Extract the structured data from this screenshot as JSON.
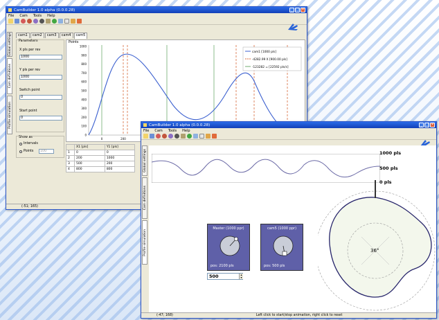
{
  "back_window": {
    "title": "CamBuilder 1.0 alpha (0.0.0.28)",
    "menu": [
      "File",
      "Cam",
      "Tools",
      "Help"
    ],
    "side_tabs": [
      "Global settings",
      "Cam definitions",
      "Profile simulation"
    ],
    "tabs": [
      "cam1",
      "cam2",
      "cam3",
      "cam4",
      "cam5"
    ],
    "active_tab": "cam5",
    "params": {
      "group": "Parameters",
      "x_label": "X pls per rev",
      "x_value": "1000",
      "y_label": "Y pls per rev",
      "y_value": "1000",
      "switch_label": "Switch point",
      "switch_value": "0",
      "start_label": "Start point",
      "start_value": "0"
    },
    "show_as": {
      "group": "Show as",
      "option1": "Intervals",
      "option2": "Points",
      "points_value": "100"
    },
    "plot_group": "Points",
    "legend": [
      "cam1 [1000 pls]",
      "-4282.99 X [900.00 pls]",
      "-123282 = [22592 pls/s]"
    ],
    "y_ticks": [
      "1000",
      "900",
      "800",
      "700",
      "600",
      "500",
      "400",
      "300",
      "200",
      "100",
      "0"
    ],
    "x_ticks": [
      "0",
      "200",
      "400"
    ],
    "table": {
      "headers": [
        "",
        "X1 [pls]",
        "Y1 [pls]"
      ],
      "rows": [
        [
          "1",
          "0",
          "0"
        ],
        [
          "2",
          "200",
          "1000"
        ],
        [
          "3",
          "500",
          "200"
        ],
        [
          "4",
          "800",
          "800"
        ]
      ]
    },
    "status": "(-51; 165)"
  },
  "front_window": {
    "title": "CamBuilder 1.0 alpha (0.0.0.28)",
    "menu": [
      "File",
      "Cam",
      "Tools",
      "Help"
    ],
    "side_tabs": [
      "Global settings",
      "Cam definitions",
      "Profile simulation"
    ],
    "scale_labels": [
      "1000 pls",
      "500 pls",
      "0 pls"
    ],
    "master": {
      "title": "Master (1000 ppr)",
      "pos": "pos: 2100 pls"
    },
    "cam": {
      "title": "cam5 (1000 ppr)",
      "pos": "pos: 500 pls"
    },
    "speed_value": "500",
    "angle_label": "36°",
    "status_left": "(-47; 168)",
    "status_hint": "Left click to start/stop animation, right click to reset"
  },
  "colors": {
    "title_blue": "#1f55d6",
    "curve_blue": "#3a5fcf",
    "mini_panel": "#5f60a8",
    "profile_fill": "#f3f7ec",
    "profile_stroke": "#26246a",
    "dashed_red": "#d86a3a",
    "grid_green": "#6fae6f",
    "logo_blue": "#2a64d8"
  }
}
